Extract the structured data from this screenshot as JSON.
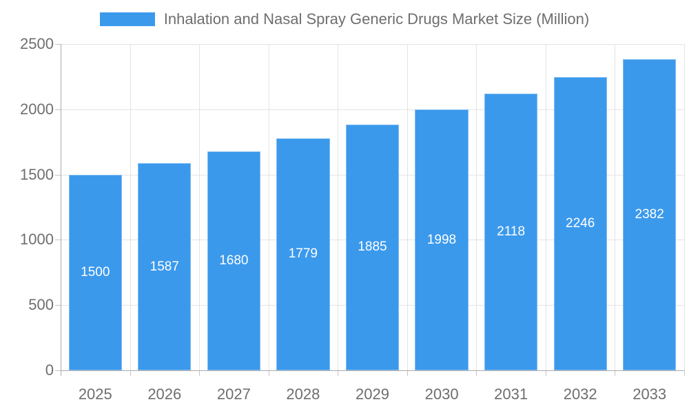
{
  "legend": {
    "label": "Inhalation and Nasal Spray Generic Drugs Market Size (Million)"
  },
  "colors": {
    "bar": "#3b99ec",
    "value_label": "#ffffff",
    "axis_text": "#6e6e6e",
    "gridline": "#e3e3e3",
    "axis_line": "#a9a9a9",
    "tick": "#c4c4c4",
    "background": "#ffffff"
  },
  "chart_data": {
    "type": "bar",
    "title": "Inhalation and Nasal Spray Generic Drugs Market Size (Million)",
    "categories": [
      "2025",
      "2026",
      "2027",
      "2028",
      "2029",
      "2030",
      "2031",
      "2032",
      "2033"
    ],
    "values": [
      1500,
      1587,
      1680,
      1779,
      1885,
      1998,
      2118,
      2246,
      2382
    ],
    "xlabel": "",
    "ylabel": "",
    "ylim": [
      0,
      2500
    ],
    "yticks": [
      0,
      500,
      1000,
      1500,
      2000,
      2500
    ],
    "grid": true,
    "legend_position": "top-center",
    "value_labels": "centered-inside-bars"
  }
}
